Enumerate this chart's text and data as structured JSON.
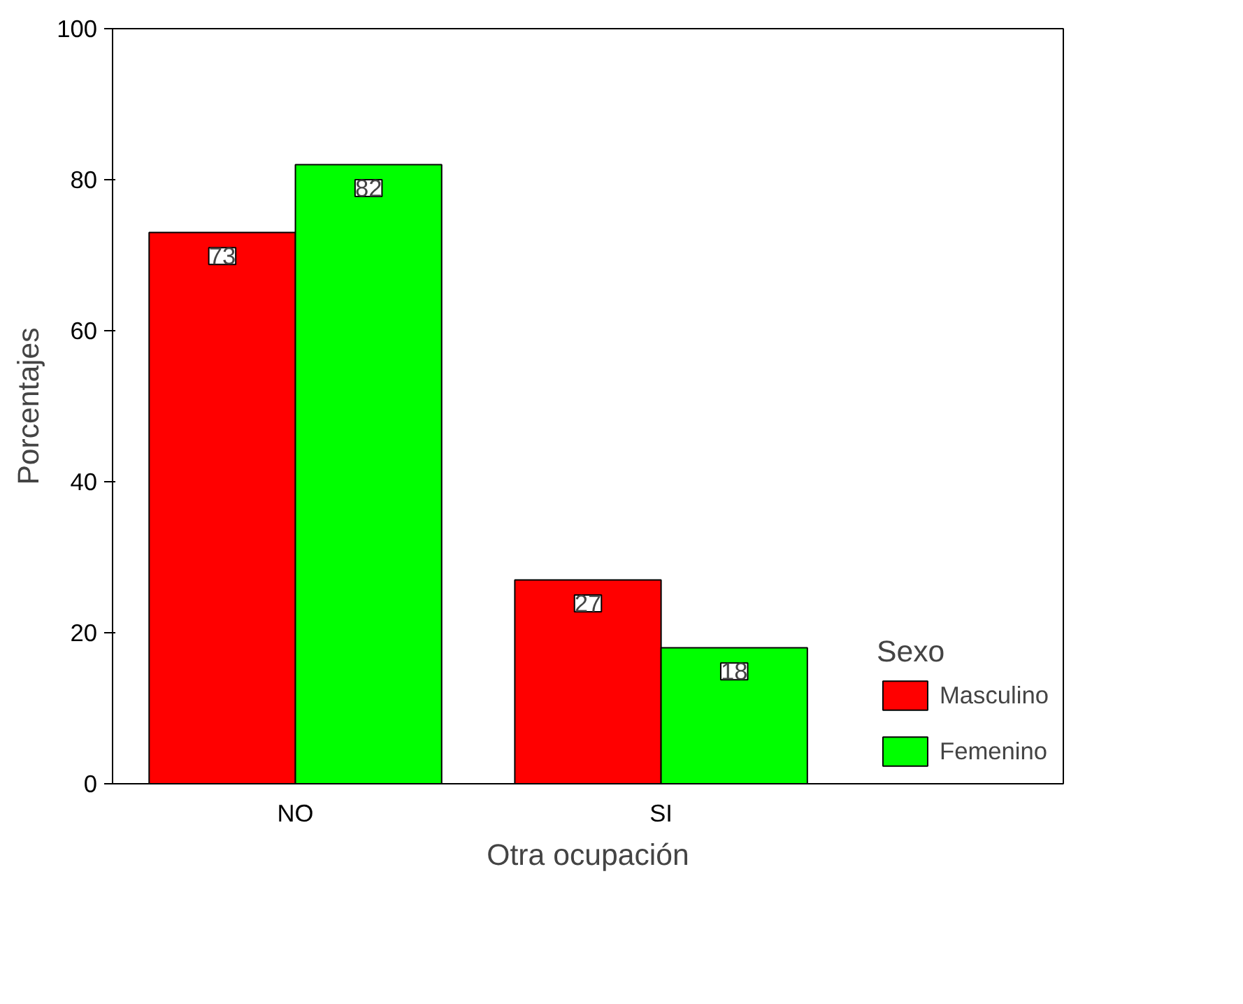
{
  "chart_data": {
    "type": "bar",
    "xlabel": "Otra ocupación",
    "ylabel": "Porcentajes",
    "legend_title": "Sexo",
    "categories": [
      "NO",
      "SI"
    ],
    "series": [
      {
        "name": "Masculino",
        "color": "#ff0000",
        "values": [
          73,
          27
        ]
      },
      {
        "name": "Femenino",
        "color": "#00ff00",
        "values": [
          82,
          18
        ]
      }
    ],
    "ylim": [
      0,
      100
    ],
    "yticks": [
      0,
      20,
      40,
      60,
      80,
      100
    ],
    "grid": false,
    "legend": "bottom right",
    "data_labels": true
  }
}
